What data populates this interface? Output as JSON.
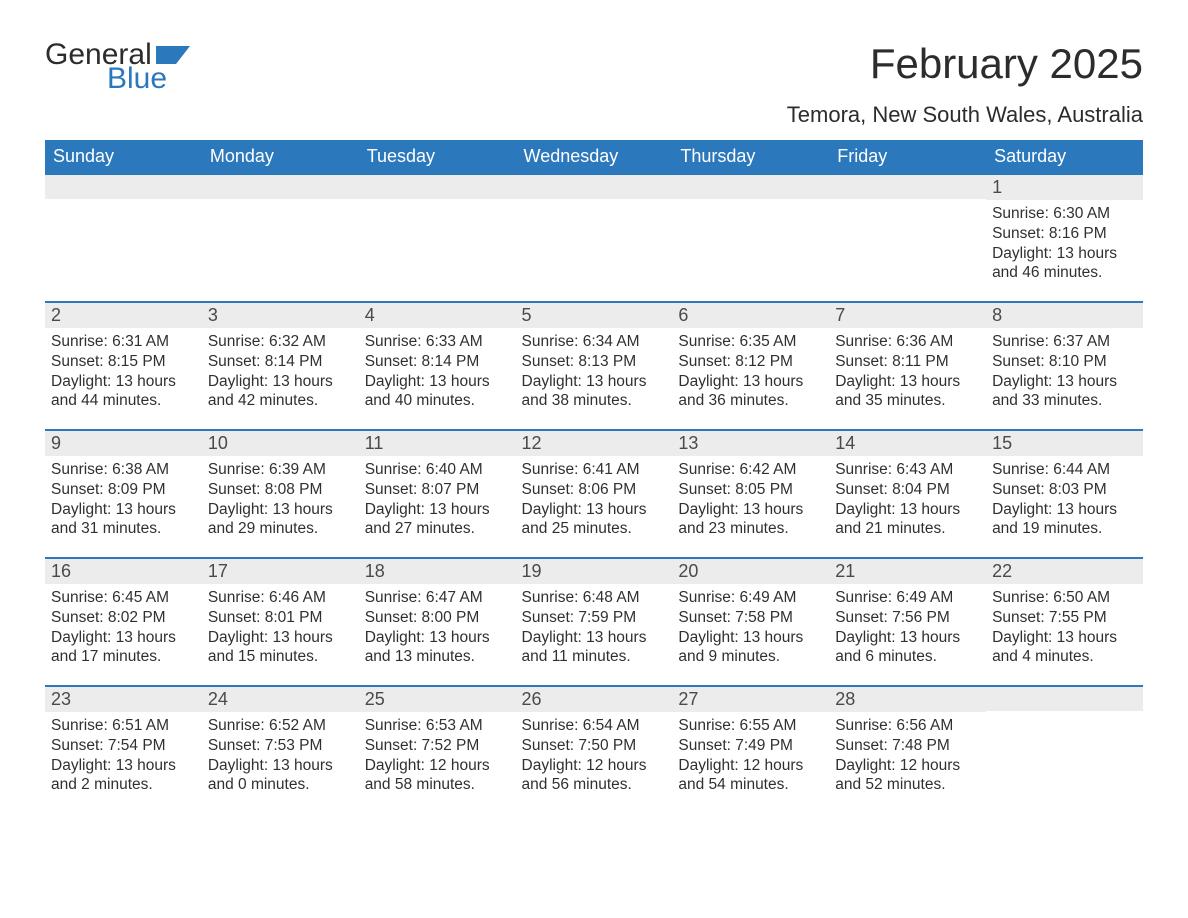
{
  "logo": {
    "text1": "General",
    "text2": "Blue",
    "icon_color": "#2b78bd"
  },
  "title": "February 2025",
  "subtitle": "Temora, New South Wales, Australia",
  "colors": {
    "header_bg": "#2b78bd",
    "header_fg": "#ffffff",
    "daybar_bg": "#ececec",
    "daybar_border": "#2b78bd",
    "text": "#303030",
    "page_bg": "#ffffff"
  },
  "typography": {
    "title_fontsize": 42,
    "subtitle_fontsize": 22,
    "header_fontsize": 18,
    "daynum_fontsize": 18,
    "body_fontsize": 15.5
  },
  "day_headers": [
    "Sunday",
    "Monday",
    "Tuesday",
    "Wednesday",
    "Thursday",
    "Friday",
    "Saturday"
  ],
  "weeks": [
    [
      null,
      null,
      null,
      null,
      null,
      null,
      {
        "n": "1",
        "sunrise": "Sunrise: 6:30 AM",
        "sunset": "Sunset: 8:16 PM",
        "daylight": "Daylight: 13 hours and 46 minutes."
      }
    ],
    [
      {
        "n": "2",
        "sunrise": "Sunrise: 6:31 AM",
        "sunset": "Sunset: 8:15 PM",
        "daylight": "Daylight: 13 hours and 44 minutes."
      },
      {
        "n": "3",
        "sunrise": "Sunrise: 6:32 AM",
        "sunset": "Sunset: 8:14 PM",
        "daylight": "Daylight: 13 hours and 42 minutes."
      },
      {
        "n": "4",
        "sunrise": "Sunrise: 6:33 AM",
        "sunset": "Sunset: 8:14 PM",
        "daylight": "Daylight: 13 hours and 40 minutes."
      },
      {
        "n": "5",
        "sunrise": "Sunrise: 6:34 AM",
        "sunset": "Sunset: 8:13 PM",
        "daylight": "Daylight: 13 hours and 38 minutes."
      },
      {
        "n": "6",
        "sunrise": "Sunrise: 6:35 AM",
        "sunset": "Sunset: 8:12 PM",
        "daylight": "Daylight: 13 hours and 36 minutes."
      },
      {
        "n": "7",
        "sunrise": "Sunrise: 6:36 AM",
        "sunset": "Sunset: 8:11 PM",
        "daylight": "Daylight: 13 hours and 35 minutes."
      },
      {
        "n": "8",
        "sunrise": "Sunrise: 6:37 AM",
        "sunset": "Sunset: 8:10 PM",
        "daylight": "Daylight: 13 hours and 33 minutes."
      }
    ],
    [
      {
        "n": "9",
        "sunrise": "Sunrise: 6:38 AM",
        "sunset": "Sunset: 8:09 PM",
        "daylight": "Daylight: 13 hours and 31 minutes."
      },
      {
        "n": "10",
        "sunrise": "Sunrise: 6:39 AM",
        "sunset": "Sunset: 8:08 PM",
        "daylight": "Daylight: 13 hours and 29 minutes."
      },
      {
        "n": "11",
        "sunrise": "Sunrise: 6:40 AM",
        "sunset": "Sunset: 8:07 PM",
        "daylight": "Daylight: 13 hours and 27 minutes."
      },
      {
        "n": "12",
        "sunrise": "Sunrise: 6:41 AM",
        "sunset": "Sunset: 8:06 PM",
        "daylight": "Daylight: 13 hours and 25 minutes."
      },
      {
        "n": "13",
        "sunrise": "Sunrise: 6:42 AM",
        "sunset": "Sunset: 8:05 PM",
        "daylight": "Daylight: 13 hours and 23 minutes."
      },
      {
        "n": "14",
        "sunrise": "Sunrise: 6:43 AM",
        "sunset": "Sunset: 8:04 PM",
        "daylight": "Daylight: 13 hours and 21 minutes."
      },
      {
        "n": "15",
        "sunrise": "Sunrise: 6:44 AM",
        "sunset": "Sunset: 8:03 PM",
        "daylight": "Daylight: 13 hours and 19 minutes."
      }
    ],
    [
      {
        "n": "16",
        "sunrise": "Sunrise: 6:45 AM",
        "sunset": "Sunset: 8:02 PM",
        "daylight": "Daylight: 13 hours and 17 minutes."
      },
      {
        "n": "17",
        "sunrise": "Sunrise: 6:46 AM",
        "sunset": "Sunset: 8:01 PM",
        "daylight": "Daylight: 13 hours and 15 minutes."
      },
      {
        "n": "18",
        "sunrise": "Sunrise: 6:47 AM",
        "sunset": "Sunset: 8:00 PM",
        "daylight": "Daylight: 13 hours and 13 minutes."
      },
      {
        "n": "19",
        "sunrise": "Sunrise: 6:48 AM",
        "sunset": "Sunset: 7:59 PM",
        "daylight": "Daylight: 13 hours and 11 minutes."
      },
      {
        "n": "20",
        "sunrise": "Sunrise: 6:49 AM",
        "sunset": "Sunset: 7:58 PM",
        "daylight": "Daylight: 13 hours and 9 minutes."
      },
      {
        "n": "21",
        "sunrise": "Sunrise: 6:49 AM",
        "sunset": "Sunset: 7:56 PM",
        "daylight": "Daylight: 13 hours and 6 minutes."
      },
      {
        "n": "22",
        "sunrise": "Sunrise: 6:50 AM",
        "sunset": "Sunset: 7:55 PM",
        "daylight": "Daylight: 13 hours and 4 minutes."
      }
    ],
    [
      {
        "n": "23",
        "sunrise": "Sunrise: 6:51 AM",
        "sunset": "Sunset: 7:54 PM",
        "daylight": "Daylight: 13 hours and 2 minutes."
      },
      {
        "n": "24",
        "sunrise": "Sunrise: 6:52 AM",
        "sunset": "Sunset: 7:53 PM",
        "daylight": "Daylight: 13 hours and 0 minutes."
      },
      {
        "n": "25",
        "sunrise": "Sunrise: 6:53 AM",
        "sunset": "Sunset: 7:52 PM",
        "daylight": "Daylight: 12 hours and 58 minutes."
      },
      {
        "n": "26",
        "sunrise": "Sunrise: 6:54 AM",
        "sunset": "Sunset: 7:50 PM",
        "daylight": "Daylight: 12 hours and 56 minutes."
      },
      {
        "n": "27",
        "sunrise": "Sunrise: 6:55 AM",
        "sunset": "Sunset: 7:49 PM",
        "daylight": "Daylight: 12 hours and 54 minutes."
      },
      {
        "n": "28",
        "sunrise": "Sunrise: 6:56 AM",
        "sunset": "Sunset: 7:48 PM",
        "daylight": "Daylight: 12 hours and 52 minutes."
      },
      null
    ]
  ]
}
